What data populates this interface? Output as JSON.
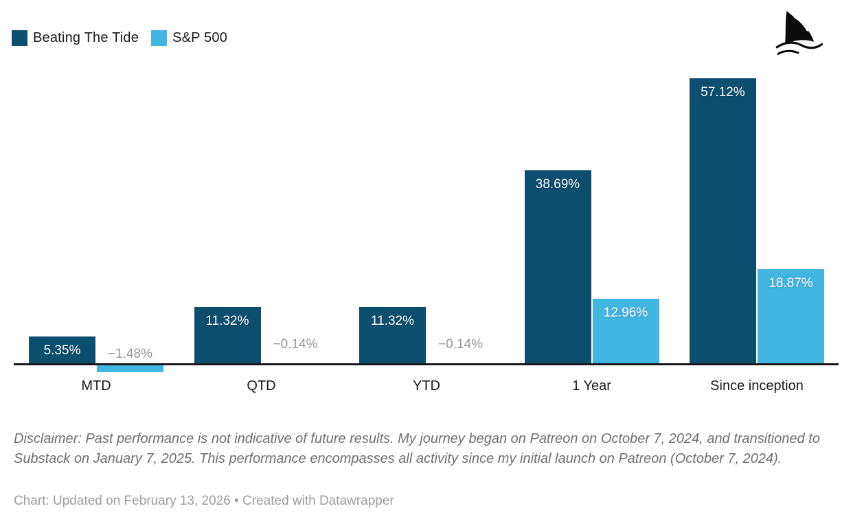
{
  "legend": {
    "items": [
      {
        "label": "Beating The Tide",
        "color": "#0b4e6e"
      },
      {
        "label": "S&P 500",
        "color": "#42b5e1"
      }
    ]
  },
  "logo": {
    "name": "shark-fin-logo"
  },
  "chart_data": {
    "type": "bar",
    "title": "",
    "categories": [
      "MTD",
      "QTD",
      "YTD",
      "1 Year",
      "Since inception"
    ],
    "series": [
      {
        "name": "Beating The Tide",
        "color": "#0b4e6e",
        "values": [
          5.35,
          11.32,
          11.32,
          38.69,
          57.12
        ],
        "labels": [
          "5.35%",
          "11.32%",
          "11.32%",
          "38.69%",
          "57.12%"
        ]
      },
      {
        "name": "S&P 500",
        "color": "#42b5e1",
        "values": [
          -1.48,
          -0.14,
          -0.14,
          12.96,
          18.87
        ],
        "labels": [
          "−1.48%",
          "−0.14%",
          "−0.14%",
          "12.96%",
          "18.87%"
        ]
      }
    ],
    "xlabel": "",
    "ylabel": "",
    "unit": "%",
    "ylim": [
      -2,
      60
    ],
    "grid": false,
    "baseline": 0,
    "legend_position": "top-left",
    "axis_color": "#19191c",
    "negative_label_color": "#969696"
  },
  "footer": {
    "disclaimer": "Disclaimer: Past performance is not indicative of future results. My journey began on Patreon on October 7, 2024, and transitioned to Substack on January 7, 2025. This performance encompasses all activity since my initial launch on Patreon (October 7, 2024).",
    "credit": "Chart: Updated on February 13, 2026 • Created with Datawrapper"
  }
}
